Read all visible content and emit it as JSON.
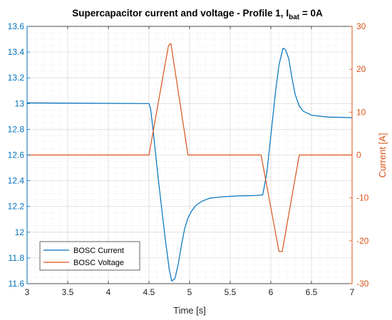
{
  "chart_data": {
    "type": "line",
    "title": "Supercapacitor current and voltage - Profile 1, ",
    "title_var": "I",
    "title_sub": "bat",
    "title_tail": " = 0A",
    "xlabel": "Time [s]",
    "ylabel_left": "",
    "ylabel_right": "Current [A]",
    "xlim": [
      3,
      7
    ],
    "ylim_left": [
      11.6,
      13.6
    ],
    "ylim_right": [
      -30,
      30
    ],
    "x_ticks": [
      "3",
      "3.5",
      "4",
      "4.5",
      "5",
      "5.5",
      "6",
      "6.5",
      "7"
    ],
    "y_left_ticks": [
      "11.6",
      "11.8",
      "12",
      "12.2",
      "12.4",
      "12.6",
      "12.8",
      "13",
      "13.2",
      "13.4",
      "13.6"
    ],
    "y_right_ticks": [
      "-30",
      "-20",
      "-10",
      "0",
      "10",
      "20",
      "30"
    ],
    "grid": true,
    "minor_grid": true,
    "legend_position": "bottom-left",
    "colors": {
      "axis_left": "#0072BD",
      "axis_right": "#D95319",
      "grid": "#dcdcdc"
    },
    "series": [
      {
        "name": "BOSC Current",
        "axis": "left",
        "color": "#0072BD",
        "x": [
          3.0,
          4.5,
          4.52,
          4.55,
          4.6,
          4.65,
          4.7,
          4.75,
          4.78,
          4.82,
          4.86,
          4.9,
          4.94,
          4.98,
          5.02,
          5.08,
          5.15,
          5.25,
          5.4,
          5.6,
          5.8,
          5.9,
          5.95,
          6.0,
          6.05,
          6.1,
          6.15,
          6.18,
          6.22,
          6.26,
          6.3,
          6.35,
          6.4,
          6.5,
          6.7,
          7.0
        ],
        "y": [
          13.005,
          13.0,
          12.96,
          12.8,
          12.5,
          12.22,
          11.95,
          11.71,
          11.62,
          11.64,
          11.75,
          11.9,
          12.03,
          12.11,
          12.16,
          12.21,
          12.24,
          12.265,
          12.275,
          12.282,
          12.285,
          12.29,
          12.46,
          12.75,
          13.05,
          13.3,
          13.43,
          13.42,
          13.35,
          13.2,
          13.07,
          12.98,
          12.94,
          12.91,
          12.895,
          12.89
        ]
      },
      {
        "name": "BOSC Voltage",
        "axis": "right",
        "color": "#D95319",
        "x": [
          3.0,
          4.5,
          4.74,
          4.77,
          4.98,
          5.88,
          6.1,
          6.14,
          6.35,
          7.0
        ],
        "y": [
          0,
          0,
          25.5,
          26,
          0,
          0,
          -22.5,
          -22.5,
          0,
          0
        ]
      }
    ]
  }
}
